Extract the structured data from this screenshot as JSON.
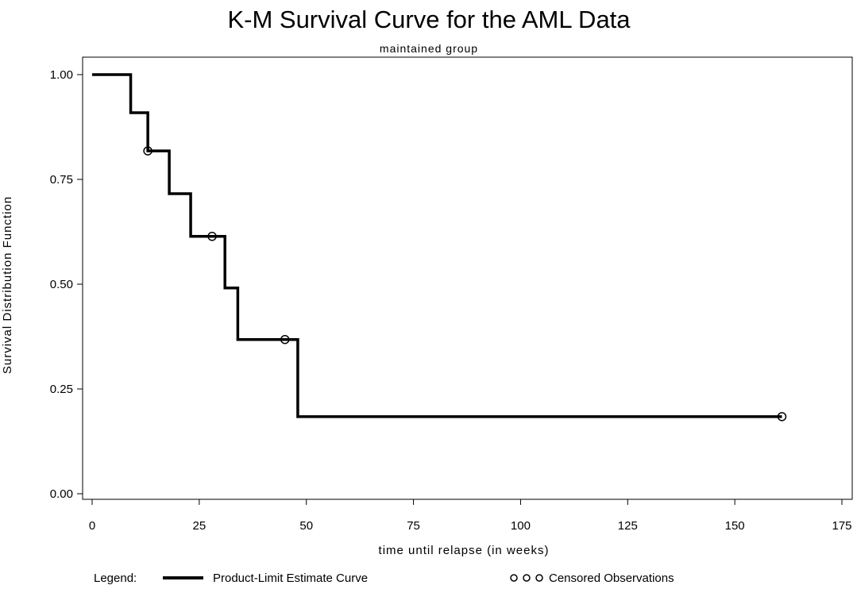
{
  "chart_data": {
    "type": "line",
    "title": "K-M Survival Curve for the AML Data",
    "subtitle": "maintained group",
    "xlabel": "time until relapse (in weeks)",
    "ylabel": "Survival Distribution Function",
    "xlim": [
      0,
      175
    ],
    "ylim": [
      0,
      1
    ],
    "x_ticks": [
      0,
      25,
      50,
      75,
      100,
      125,
      150,
      175
    ],
    "y_ticks": [
      0,
      0.25,
      0.5,
      0.75,
      1
    ],
    "x_tick_labels": [
      "0",
      "25",
      "50",
      "75",
      "100",
      "125",
      "150",
      "175"
    ],
    "y_tick_labels": [
      "0.00",
      "0.25",
      "0.50",
      "0.75",
      "1.00"
    ],
    "grid": false,
    "series": [
      {
        "name": "Product-Limit Estimate Curve",
        "step": "post",
        "x": [
          0,
          9,
          13,
          18,
          23,
          31,
          34,
          48,
          161
        ],
        "y": [
          1.0,
          0.909,
          0.818,
          0.716,
          0.614,
          0.491,
          0.368,
          0.184,
          0.184
        ]
      },
      {
        "name": "Censored Observations",
        "marker": "circle",
        "x": [
          13,
          28,
          45,
          161
        ],
        "y": [
          0.818,
          0.614,
          0.368,
          0.184
        ]
      }
    ],
    "legend": {
      "placement": "bottom",
      "prefix": "Legend:",
      "entries": [
        "Product-Limit Estimate Curve",
        "Censored Observations"
      ]
    }
  }
}
